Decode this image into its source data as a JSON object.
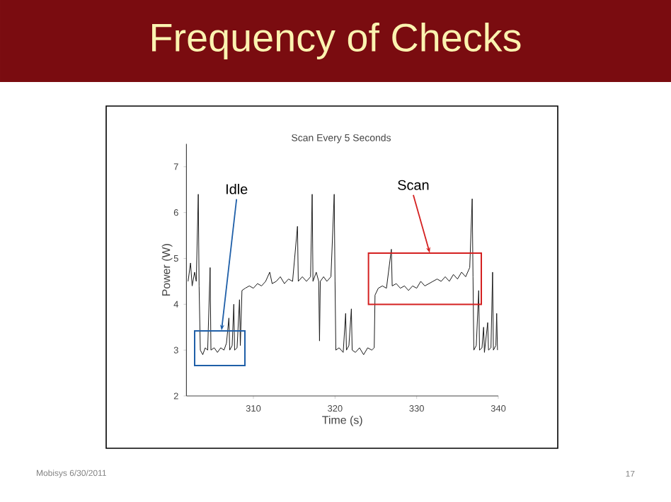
{
  "chart_data": {
    "type": "line",
    "title": "Frequency of Checks",
    "subtitle": "Scan Every 5 Seconds",
    "xlabel": "Time (s)",
    "ylabel": "Power (W)",
    "xlim": [
      301.8,
      340
    ],
    "xticks": [
      310,
      320,
      330,
      340
    ],
    "ylim": [
      2,
      7.5
    ],
    "yticks": [
      2,
      3,
      4,
      5,
      6,
      7
    ],
    "grid": false,
    "marker": "none",
    "line_style": "solid",
    "x": [
      302.0,
      302.3,
      302.5,
      302.8,
      303.0,
      303.25,
      303.35,
      303.5,
      303.8,
      304.1,
      304.4,
      304.7,
      304.8,
      305.2,
      305.6,
      306.0,
      306.4,
      306.7,
      307.0,
      307.1,
      307.4,
      307.6,
      307.7,
      308.0,
      308.3,
      308.4,
      308.6,
      309.0,
      309.5,
      310.0,
      310.5,
      311.0,
      311.5,
      312.0,
      312.3,
      312.8,
      313.3,
      313.8,
      314.3,
      314.8,
      315.4,
      315.5,
      316.0,
      316.5,
      317.0,
      317.2,
      317.3,
      317.7,
      318.0,
      318.1,
      318.2,
      318.6,
      319.0,
      319.5,
      319.9,
      320.0,
      320.1,
      320.5,
      321.0,
      321.3,
      321.4,
      321.7,
      322.0,
      322.1,
      322.5,
      323.0,
      323.5,
      324.0,
      324.5,
      324.8,
      324.9,
      325.3,
      325.8,
      326.3,
      326.9,
      327.0,
      327.5,
      328.0,
      328.5,
      329.0,
      329.5,
      330.0,
      330.5,
      331.0,
      331.5,
      332.0,
      332.5,
      333.0,
      333.5,
      334.0,
      334.5,
      335.0,
      335.5,
      336.0,
      336.5,
      336.8,
      336.9,
      337.0,
      337.3,
      337.6,
      337.7,
      338.0,
      338.2,
      338.3,
      338.7,
      338.8,
      339.1,
      339.3,
      339.4,
      339.7,
      339.8,
      339.9
    ],
    "series": [
      {
        "color": "#1a1a1a",
        "values": [
          4.5,
          4.9,
          4.4,
          4.7,
          4.5,
          6.4,
          4.4,
          3.0,
          2.9,
          3.05,
          3.0,
          4.8,
          3.0,
          3.05,
          2.95,
          3.05,
          3.0,
          3.15,
          3.7,
          3.0,
          3.1,
          4.0,
          3.0,
          3.05,
          4.1,
          3.1,
          4.3,
          4.35,
          4.4,
          4.35,
          4.45,
          4.4,
          4.5,
          4.7,
          4.45,
          4.5,
          4.6,
          4.45,
          4.55,
          4.5,
          5.7,
          4.5,
          4.6,
          4.5,
          4.6,
          6.4,
          4.5,
          4.7,
          4.5,
          3.2,
          4.5,
          4.6,
          4.5,
          4.6,
          6.4,
          4.5,
          3.0,
          3.05,
          2.95,
          3.8,
          3.0,
          3.1,
          3.9,
          3.0,
          2.95,
          3.05,
          2.9,
          3.05,
          3.0,
          3.05,
          4.2,
          4.35,
          4.4,
          4.35,
          5.2,
          4.4,
          4.45,
          4.35,
          4.4,
          4.3,
          4.4,
          4.35,
          4.5,
          4.4,
          4.45,
          4.5,
          4.55,
          4.5,
          4.6,
          4.5,
          4.65,
          4.55,
          4.7,
          4.6,
          4.8,
          6.3,
          4.6,
          3.0,
          3.1,
          4.3,
          3.0,
          3.05,
          3.5,
          2.95,
          3.6,
          3.0,
          3.05,
          4.7,
          3.0,
          3.1,
          3.8,
          3.0
        ]
      }
    ],
    "annotations": [
      {
        "text": "Idle",
        "x": 306.1,
        "y": 3.43
      },
      {
        "text": "Scan",
        "x": 331.6,
        "y": 5.12
      },
      "Mobisys 6/30/2011",
      "17"
    ]
  }
}
